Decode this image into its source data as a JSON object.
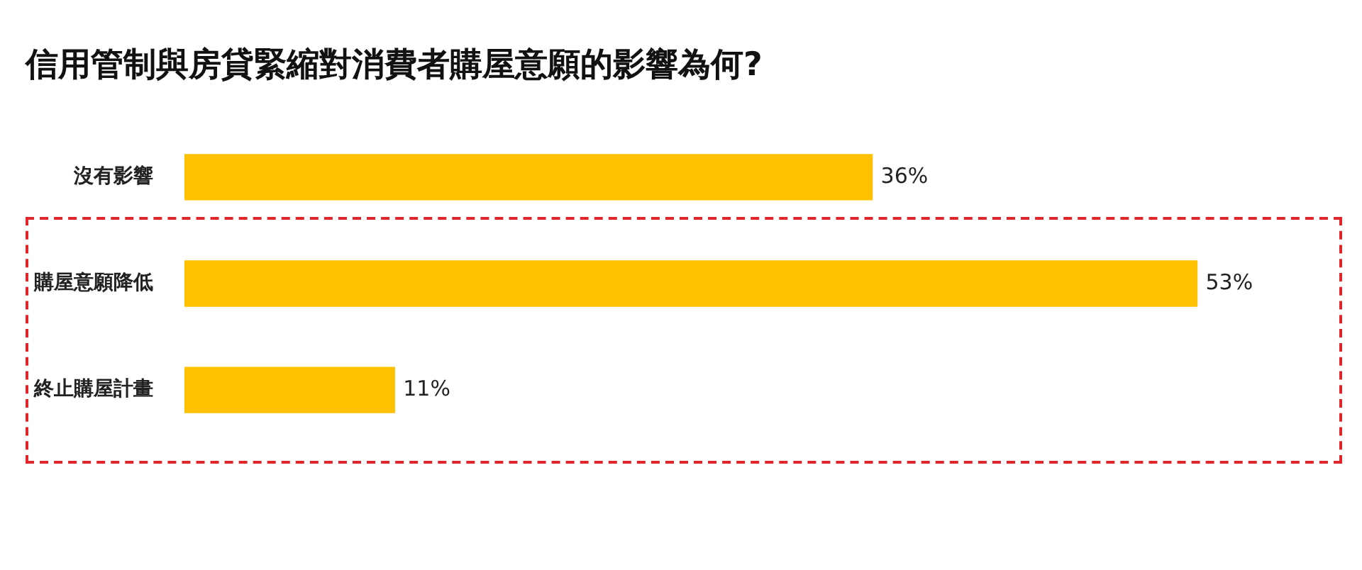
{
  "chart_data": {
    "type": "bar",
    "orientation": "horizontal",
    "title": "信用管制與房貸緊縮對消費者購屋意願的影響為何?",
    "categories": [
      "沒有影響",
      "購屋意願降低",
      "終止購屋計畫"
    ],
    "values": [
      36,
      53,
      11
    ],
    "color": "#ffc000",
    "value_labels": [
      "36%",
      "53%",
      "11%"
    ],
    "legend": false
  }
}
